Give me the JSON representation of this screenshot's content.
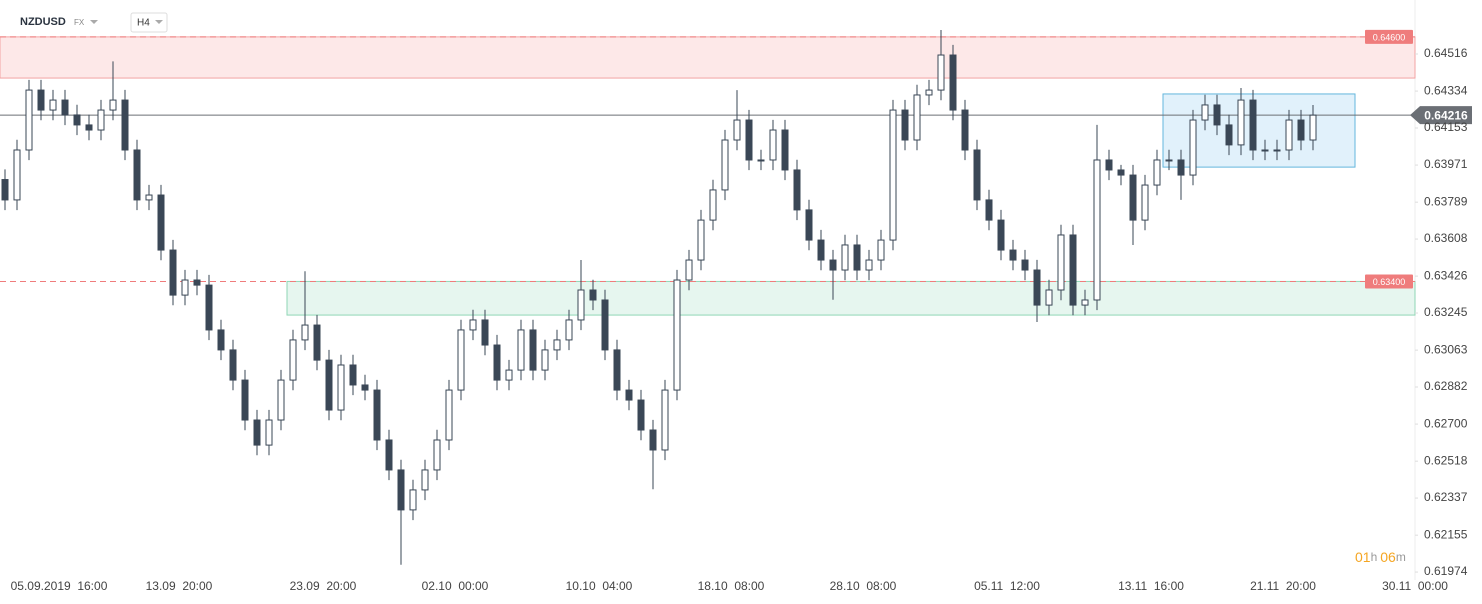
{
  "header": {
    "symbol": "NZDUSD",
    "market": "FX",
    "interval": "H4"
  },
  "timer": {
    "hours": "01",
    "h": "h",
    "minutes": "06",
    "m": "m"
  },
  "chart_data": {
    "type": "candlestick",
    "categories": [
      null,
      null,
      null,
      null,
      "05.09.2019  16:00",
      null,
      null,
      null,
      null,
      null,
      null,
      null,
      null,
      null,
      "13.09  20:00",
      null,
      null,
      null,
      null,
      null,
      null,
      null,
      null,
      null,
      null,
      null,
      "23.09  20:00",
      null,
      null,
      null,
      null,
      null,
      null,
      null,
      null,
      null,
      null,
      "02.10  00:00",
      null,
      null,
      null,
      null,
      null,
      null,
      null,
      null,
      null,
      null,
      null,
      "10.10  04:00",
      null,
      null,
      null,
      null,
      null,
      null,
      null,
      null,
      null,
      null,
      "18.10  08:00",
      null,
      null,
      null,
      null,
      null,
      null,
      null,
      null,
      null,
      null,
      "28.10  08:00",
      null,
      null,
      null,
      null,
      null,
      null,
      null,
      null,
      null,
      null,
      null,
      "05.11  12:00",
      null,
      null,
      null,
      null,
      null,
      null,
      null,
      null,
      null,
      null,
      null,
      "13.11  16:00",
      null,
      null,
      null,
      null,
      null,
      null,
      null,
      null,
      null,
      null,
      "21.11  20:00",
      null,
      null,
      null,
      null,
      null,
      null,
      null,
      null,
      null,
      null,
      "30.11  00:00"
    ],
    "open": [
      0.639,
      0.638,
      0.64045,
      0.64339,
      0.64241,
      0.6429,
      0.64217,
      0.64168,
      0.64143,
      0.64241,
      0.6429,
      0.64045,
      0.638,
      0.63824,
      0.63554,
      0.63333,
      0.63407,
      0.63382,
      0.63162,
      0.63064,
      0.62916,
      0.6272,
      0.62597,
      0.6272,
      0.62916,
      0.63113,
      0.63186,
      0.63014,
      0.62769,
      0.6299,
      0.62892,
      0.62867,
      0.62622,
      0.62475,
      0.62279,
      0.62377,
      0.62475,
      0.62622,
      0.62867,
      0.63162,
      0.63211,
      0.63088,
      0.62916,
      0.62965,
      0.63162,
      0.62965,
      0.63064,
      0.63113,
      0.63211,
      0.63358,
      0.63309,
      0.63064,
      0.62867,
      0.62818,
      0.62671,
      0.62573,
      0.62867,
      0.63407,
      0.63505,
      0.63701,
      0.63849,
      0.64094,
      0.64192,
      0.63996,
      0.63996,
      0.64143,
      0.63947,
      0.63751,
      0.63603,
      0.63505,
      0.63456,
      0.63579,
      0.63456,
      0.63505,
      0.63603,
      0.64241,
      0.64094,
      0.64315,
      0.64339,
      0.64511,
      0.64241,
      0.64045,
      0.638,
      0.63701,
      0.63554,
      0.63505,
      0.63456,
      0.63284,
      0.63358,
      0.63628,
      0.63284,
      0.63309,
      0.63996,
      0.63947,
      0.63922,
      0.63701,
      0.63873,
      0.63996,
      0.63996,
      0.63922,
      0.64192,
      0.64266,
      0.64168,
      0.6407,
      0.6429,
      0.64045,
      0.64045,
      0.64045,
      0.64192,
      0.64094,
      null,
      null,
      null,
      null,
      null,
      null,
      null,
      null
    ],
    "high": [
      0.6395,
      0.64095,
      0.64389,
      0.64389,
      0.6434,
      0.6434,
      0.64267,
      0.64218,
      0.64291,
      0.6448,
      0.6434,
      0.64095,
      0.63874,
      0.63874,
      0.63604,
      0.63457,
      0.63457,
      0.63432,
      0.63212,
      0.63114,
      0.62966,
      0.6277,
      0.6277,
      0.62966,
      0.63163,
      0.6345,
      0.63236,
      0.63064,
      0.6304,
      0.6304,
      0.62942,
      0.62917,
      0.62672,
      0.62525,
      0.62427,
      0.62525,
      0.62672,
      0.62917,
      0.63212,
      0.63261,
      0.63261,
      0.63138,
      0.63015,
      0.63212,
      0.63212,
      0.63114,
      0.63163,
      0.63261,
      0.63505,
      0.63408,
      0.63359,
      0.63114,
      0.62917,
      0.62868,
      0.62721,
      0.62917,
      0.63457,
      0.63555,
      0.63751,
      0.63899,
      0.64144,
      0.64339,
      0.64242,
      0.64046,
      0.64193,
      0.64193,
      0.63997,
      0.63801,
      0.63653,
      0.63555,
      0.63629,
      0.63629,
      0.63555,
      0.63653,
      0.64291,
      0.64291,
      0.64365,
      0.64389,
      0.64634,
      0.64561,
      0.64291,
      0.64095,
      0.6385,
      0.63751,
      0.63604,
      0.63555,
      0.63506,
      0.63408,
      0.63678,
      0.63678,
      0.63359,
      0.64168,
      0.64046,
      0.63972,
      0.63972,
      0.63923,
      0.64046,
      0.64046,
      0.64046,
      0.64242,
      0.64316,
      0.64316,
      0.64218,
      0.64349,
      0.6434,
      0.64095,
      0.64095,
      0.64242,
      0.64242,
      0.64266,
      null,
      null,
      null,
      null,
      null,
      null,
      null,
      null
    ],
    "low": [
      0.6375,
      0.6375,
      0.63995,
      0.64191,
      0.64191,
      0.64167,
      0.64118,
      0.64093,
      0.64093,
      0.64191,
      0.63995,
      0.6375,
      0.6375,
      0.63504,
      0.63283,
      0.63283,
      0.63332,
      0.63112,
      0.63014,
      0.62866,
      0.6267,
      0.62547,
      0.62547,
      0.6267,
      0.62866,
      0.63063,
      0.62964,
      0.62719,
      0.62719,
      0.62842,
      0.62817,
      0.62572,
      0.62425,
      0.6201,
      0.62229,
      0.62327,
      0.62425,
      0.62572,
      0.62817,
      0.63112,
      0.63038,
      0.62866,
      0.62866,
      0.62915,
      0.62915,
      0.62915,
      0.63014,
      0.63063,
      0.63161,
      0.63259,
      0.63014,
      0.62817,
      0.62768,
      0.62621,
      0.6238,
      0.62523,
      0.62817,
      0.63357,
      0.63455,
      0.63651,
      0.63799,
      0.64044,
      0.63946,
      0.63946,
      0.63946,
      0.63897,
      0.63701,
      0.63553,
      0.63455,
      0.6331,
      0.63406,
      0.63406,
      0.63406,
      0.63455,
      0.63553,
      0.64044,
      0.64044,
      0.64265,
      0.64289,
      0.64191,
      0.63995,
      0.6375,
      0.63651,
      0.63504,
      0.63455,
      0.63406,
      0.63201,
      0.63234,
      0.63308,
      0.63234,
      0.63234,
      0.63259,
      0.63897,
      0.63872,
      0.63579,
      0.63651,
      0.63823,
      0.63946,
      0.638,
      0.63872,
      0.64142,
      0.64118,
      0.6402,
      0.6402,
      0.63995,
      0.63995,
      0.63995,
      0.63995,
      0.64044,
      0.64044,
      null,
      null,
      null,
      null,
      null,
      null,
      null,
      null
    ],
    "close": [
      0.638,
      0.64045,
      0.64339,
      0.64241,
      0.6429,
      0.64217,
      0.64168,
      0.64143,
      0.64241,
      0.6429,
      0.64045,
      0.638,
      0.63824,
      0.63554,
      0.63333,
      0.63407,
      0.63382,
      0.63162,
      0.63064,
      0.62916,
      0.6272,
      0.62597,
      0.6272,
      0.62916,
      0.63113,
      0.63186,
      0.63014,
      0.62769,
      0.6299,
      0.62892,
      0.62867,
      0.62622,
      0.62475,
      0.62279,
      0.62377,
      0.62475,
      0.62622,
      0.62867,
      0.63162,
      0.63211,
      0.63088,
      0.62916,
      0.62965,
      0.63162,
      0.62965,
      0.63064,
      0.63113,
      0.63211,
      0.63358,
      0.63309,
      0.63064,
      0.62867,
      0.62818,
      0.62671,
      0.62573,
      0.62867,
      0.63407,
      0.63505,
      0.63701,
      0.63849,
      0.64094,
      0.64192,
      0.63996,
      0.63996,
      0.64143,
      0.63947,
      0.63751,
      0.63603,
      0.63505,
      0.63456,
      0.63579,
      0.63456,
      0.63505,
      0.63603,
      0.64241,
      0.64094,
      0.64315,
      0.64339,
      0.64511,
      0.64241,
      0.64045,
      0.638,
      0.63701,
      0.63554,
      0.63505,
      0.63456,
      0.63284,
      0.63358,
      0.63628,
      0.63284,
      0.63309,
      0.63996,
      0.63947,
      0.63922,
      0.63701,
      0.63873,
      0.63996,
      0.63996,
      0.63922,
      0.64192,
      0.64266,
      0.64168,
      0.6407,
      0.6429,
      0.64045,
      0.64045,
      0.64045,
      0.64192,
      0.64094,
      0.64216,
      null,
      null,
      null,
      null,
      null,
      null,
      null,
      null
    ],
    "up_color": "#ffffff",
    "down_color": "#3a4756",
    "outline_color": "#3a4756",
    "ylim": [
      0.61935,
      0.64781
    ],
    "yticks": [
      0.64516,
      0.64334,
      0.64153,
      0.63971,
      0.63789,
      0.63608,
      0.63426,
      0.63245,
      0.63063,
      0.62882,
      {
        "value": 0.627,
        "label": "0.62700"
      },
      0.62518,
      0.62337,
      0.62155,
      0.61974
    ],
    "zones": [
      {
        "from": 0.64398,
        "to": 0.646,
        "x_from": 0,
        "x_to": 117,
        "color": "#fde8e8",
        "border": "#f2a3a3"
      },
      {
        "from": 0.63235,
        "to": 0.634,
        "x_from": 24,
        "x_to": 117,
        "color": "#e6f6ef",
        "border": "#8fd6b5"
      },
      {
        "from": 0.63961,
        "to": 0.6432,
        "x_from": 97,
        "x_to": 112,
        "color": "#e1f1fb",
        "border": "#63b6dc"
      }
    ],
    "levels": [
      {
        "value": 0.646,
        "label": "0.64600",
        "color": "#ef7c7c"
      },
      {
        "value": 0.634,
        "label": "0.63400",
        "color": "#ef7c7c"
      }
    ],
    "current": {
      "value": 0.64216,
      "label": "0.64216",
      "color": "#6b6f75"
    }
  }
}
